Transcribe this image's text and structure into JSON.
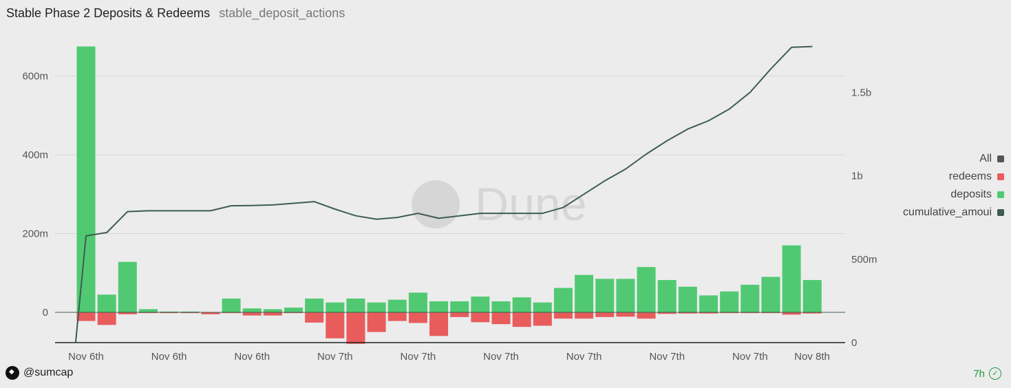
{
  "header": {
    "title": "Stable Phase 2 Deposits & Redeems",
    "subtitle": "stable_deposit_actions"
  },
  "legend": [
    {
      "label": "All",
      "color": "#555555"
    },
    {
      "label": "redeems",
      "color": "#e85c5c"
    },
    {
      "label": "deposits",
      "color": "#51c972"
    },
    {
      "label": "cumulative_amoui",
      "color": "#3e5c50"
    }
  ],
  "footer": {
    "author": "@sumcap",
    "age": "7h"
  },
  "watermark": "Dune",
  "chart_data": {
    "type": "bar",
    "x_tick_labels": [
      "Nov 6th",
      "Nov 6th",
      "Nov 6th",
      "Nov 7th",
      "Nov 7th",
      "Nov 7th",
      "Nov 7th",
      "Nov 7th",
      "Nov 7th",
      "Nov 8th"
    ],
    "y_left_ticks": [
      "0",
      "200m",
      "400m",
      "600m"
    ],
    "y_right_ticks": [
      "0",
      "500m",
      "1b",
      "1.5b"
    ],
    "ylim_left": [
      -80,
      680
    ],
    "ylim_right": [
      0,
      1850
    ],
    "series": [
      {
        "name": "deposits",
        "color": "#51c972",
        "values": [
          675,
          45,
          128,
          8,
          2,
          2,
          0,
          35,
          10,
          8,
          12,
          35,
          25,
          35,
          25,
          32,
          50,
          28,
          28,
          40,
          28,
          38,
          25,
          62,
          95,
          85,
          85,
          115,
          82,
          65,
          43,
          53,
          70,
          90,
          170,
          82
        ]
      },
      {
        "name": "redeems",
        "color": "#e85c5c",
        "values": [
          -22,
          -32,
          -5,
          -2,
          -2,
          -2,
          -5,
          -2,
          -8,
          -8,
          -2,
          -26,
          -66,
          -80,
          -50,
          -22,
          -27,
          -60,
          -12,
          -25,
          -30,
          -37,
          -34,
          -16,
          -16,
          -12,
          -11,
          -16,
          -4,
          -3,
          -3,
          -2,
          -2,
          -2,
          -6,
          -3
        ]
      },
      {
        "name": "cumulative_amoui",
        "color": "#3e5c50",
        "x": [
          -0.5,
          0,
          1,
          2,
          3,
          4,
          5,
          6,
          7,
          8,
          9,
          10,
          11,
          12,
          13,
          14,
          15,
          16,
          17,
          18,
          19,
          20,
          21,
          22,
          23,
          24,
          25,
          26,
          27,
          28,
          29,
          30,
          31,
          32,
          33,
          34,
          35
        ],
        "values": [
          0,
          640,
          660,
          785,
          790,
          790,
          790,
          790,
          820,
          822,
          825,
          835,
          845,
          800,
          760,
          740,
          750,
          775,
          745,
          760,
          775,
          775,
          775,
          775,
          810,
          890,
          970,
          1040,
          1130,
          1210,
          1280,
          1330,
          1400,
          1500,
          1640,
          1770,
          1775
        ]
      }
    ]
  }
}
